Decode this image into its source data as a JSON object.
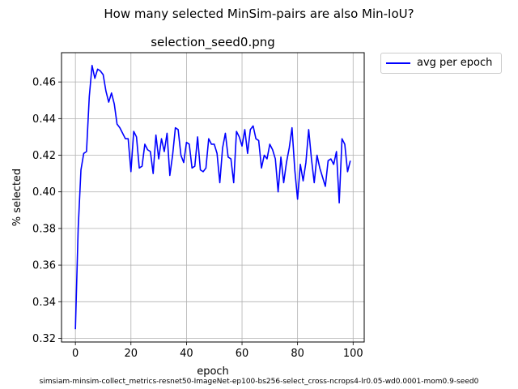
{
  "suptitle": "How many selected MinSim-pairs are also Min-IoU?",
  "footer": "simsiam-minsim-collect_metrics-resnet50-ImageNet-ep100-bs256-select_cross-ncrops4-lr0.05-wd0.0001-mom0.9-seed0",
  "chart_data": {
    "type": "line",
    "title": "selection_seed0.png",
    "xlabel": "epoch",
    "ylabel": "% selected",
    "xlim": [
      -5,
      104
    ],
    "ylim": [
      0.318,
      0.476
    ],
    "xticks": [
      0,
      20,
      40,
      60,
      80,
      100
    ],
    "yticks": [
      0.32,
      0.34,
      0.36,
      0.38,
      0.4,
      0.42,
      0.44,
      0.46
    ],
    "grid": true,
    "legend_position": "outside upper right",
    "series": [
      {
        "name": "avg per epoch",
        "color": "#0000ff",
        "x": [
          0,
          1,
          2,
          3,
          4,
          5,
          6,
          7,
          8,
          9,
          10,
          11,
          12,
          13,
          14,
          15,
          16,
          17,
          18,
          19,
          20,
          21,
          22,
          23,
          24,
          25,
          26,
          27,
          28,
          29,
          30,
          31,
          32,
          33,
          34,
          35,
          36,
          37,
          38,
          39,
          40,
          41,
          42,
          43,
          44,
          45,
          46,
          47,
          48,
          49,
          50,
          51,
          52,
          53,
          54,
          55,
          56,
          57,
          58,
          59,
          60,
          61,
          62,
          63,
          64,
          65,
          66,
          67,
          68,
          69,
          70,
          71,
          72,
          73,
          74,
          75,
          76,
          77,
          78,
          79,
          80,
          81,
          82,
          83,
          84,
          85,
          86,
          87,
          88,
          89,
          90,
          91,
          92,
          93,
          94,
          95,
          96,
          97,
          98,
          99
        ],
        "values": [
          0.325,
          0.38,
          0.412,
          0.421,
          0.422,
          0.452,
          0.469,
          0.462,
          0.467,
          0.466,
          0.464,
          0.455,
          0.449,
          0.454,
          0.448,
          0.437,
          0.435,
          0.432,
          0.429,
          0.429,
          0.411,
          0.433,
          0.43,
          0.413,
          0.414,
          0.426,
          0.423,
          0.422,
          0.41,
          0.431,
          0.418,
          0.429,
          0.422,
          0.432,
          0.409,
          0.42,
          0.435,
          0.434,
          0.42,
          0.416,
          0.427,
          0.426,
          0.413,
          0.414,
          0.43,
          0.412,
          0.411,
          0.413,
          0.429,
          0.426,
          0.426,
          0.421,
          0.405,
          0.424,
          0.432,
          0.419,
          0.418,
          0.405,
          0.433,
          0.43,
          0.425,
          0.434,
          0.421,
          0.434,
          0.436,
          0.429,
          0.428,
          0.413,
          0.42,
          0.418,
          0.426,
          0.423,
          0.418,
          0.4,
          0.419,
          0.405,
          0.416,
          0.424,
          0.435,
          0.412,
          0.396,
          0.415,
          0.406,
          0.416,
          0.434,
          0.418,
          0.405,
          0.42,
          0.413,
          0.408,
          0.403,
          0.417,
          0.418,
          0.415,
          0.422,
          0.394,
          0.429,
          0.426,
          0.411,
          0.417
        ]
      }
    ]
  }
}
